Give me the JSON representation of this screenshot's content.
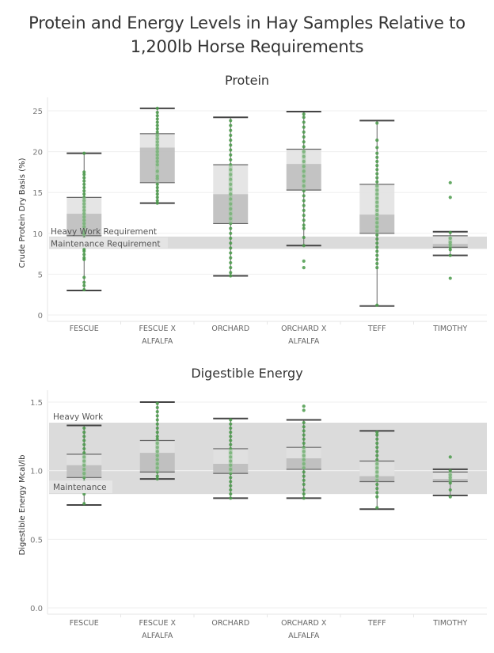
{
  "title_line1": "Protein and Energy Levels in Hay Samples Relative to",
  "title_line2": "1,200lb Horse Requirements",
  "colors": {
    "point": "#4a9a4a",
    "box_upper": "#e0e0e0",
    "box_lower": "#bdbdbd",
    "whisker": "#555555",
    "reference_band": "#d9d9d9",
    "gridline": "#efefef"
  },
  "chart_data": [
    {
      "type": "box",
      "title": "Protein",
      "ylabel": "Crude Protein Dry Basis (%)",
      "xlabel": "",
      "ylim": [
        0,
        26
      ],
      "yticks": [
        0,
        5,
        10,
        15,
        20,
        25
      ],
      "ytick_labels": [
        "0",
        "5",
        "10",
        "15",
        "20",
        "25"
      ],
      "categories": [
        "FESCUE",
        "FESCUE X\nALFALFA",
        "ORCHARD",
        "ORCHARD X\nALFALFA",
        "TEFF",
        "TIMOTHY"
      ],
      "category_lines": [
        [
          "FESCUE"
        ],
        [
          "FESCUE X",
          "ALFALFA"
        ],
        [
          "ORCHARD"
        ],
        [
          "ORCHARD X",
          "ALFALFA"
        ],
        [
          "TEFF"
        ],
        [
          "TIMOTHY"
        ]
      ],
      "reference_band": {
        "low": 8.1,
        "high": 9.6
      },
      "reference_labels": [
        {
          "text": "Heavy Work Requirement",
          "value": 9.6
        },
        {
          "text": "Maintenance Requirement",
          "value": 8.1
        }
      ],
      "boxes": [
        {
          "category": "FESCUE",
          "whisker_low": 3.0,
          "q1": 9.7,
          "median": 12.4,
          "q3": 14.4,
          "whisker_high": 19.8,
          "points": [
            3.1,
            3.6,
            4.0,
            4.6,
            6.8,
            7.0,
            7.4,
            7.8,
            8.0,
            8.3,
            8.6,
            9.0,
            9.4,
            9.9,
            10.3,
            10.8,
            11.2,
            11.6,
            12.0,
            12.4,
            12.8,
            13.2,
            13.6,
            14.0,
            14.4,
            14.8,
            15.2,
            15.6,
            16.0,
            16.4,
            16.8,
            17.2,
            17.5,
            19.8
          ]
        },
        {
          "category": "FESCUE X ALFALFA",
          "whisker_low": 13.7,
          "q1": 16.2,
          "median": 20.5,
          "q3": 22.2,
          "whisker_high": 25.3,
          "points": [
            13.7,
            14.0,
            14.4,
            14.8,
            15.2,
            15.6,
            16.0,
            16.7,
            17.0,
            17.6,
            18.4,
            18.8,
            19.2,
            19.6,
            20.0,
            20.4,
            20.8,
            21.2,
            21.6,
            22.0,
            22.4,
            22.8,
            23.2,
            23.6,
            24.0,
            24.4,
            24.8,
            25.3
          ]
        },
        {
          "category": "ORCHARD",
          "whisker_low": 4.8,
          "q1": 11.2,
          "median": 14.8,
          "q3": 18.4,
          "whisker_high": 24.2,
          "points": [
            4.8,
            5.2,
            5.8,
            6.4,
            7.0,
            7.6,
            8.2,
            8.8,
            9.4,
            10.0,
            10.6,
            11.2,
            11.8,
            12.4,
            13.0,
            13.6,
            14.2,
            14.8,
            15.4,
            16.0,
            16.6,
            17.2,
            17.8,
            18.4,
            19.0,
            19.6,
            20.2,
            20.8,
            21.4,
            22.0,
            22.6,
            23.2,
            23.8
          ]
        },
        {
          "category": "ORCHARD X ALFALFA",
          "whisker_low": 8.5,
          "q1": 15.3,
          "median": 18.5,
          "q3": 20.3,
          "whisker_high": 24.9,
          "points": [
            5.8,
            6.6,
            8.5,
            9.5,
            10.6,
            11.0,
            11.6,
            12.2,
            12.8,
            13.4,
            14.0,
            14.6,
            15.2,
            15.8,
            16.4,
            17.0,
            17.6,
            18.2,
            18.8,
            19.4,
            20.0,
            20.6,
            21.2,
            21.8,
            22.4,
            23.0,
            23.6,
            24.2,
            24.6
          ]
        },
        {
          "category": "TEFF",
          "whisker_low": 1.1,
          "q1": 10.0,
          "median": 12.3,
          "q3": 16.0,
          "whisker_high": 23.8,
          "points": [
            1.2,
            5.8,
            6.3,
            6.8,
            7.3,
            7.8,
            8.3,
            8.8,
            9.3,
            9.8,
            10.3,
            10.8,
            11.3,
            11.8,
            12.3,
            12.8,
            13.3,
            13.8,
            14.3,
            14.8,
            15.3,
            15.8,
            16.3,
            16.8,
            17.3,
            17.8,
            18.3,
            18.8,
            19.3,
            19.8,
            20.5,
            21.4,
            23.5
          ]
        },
        {
          "category": "TIMOTHY",
          "whisker_low": 7.3,
          "q1": 8.3,
          "median": 8.7,
          "q3": 9.7,
          "whisker_high": 10.2,
          "points": [
            4.5,
            7.3,
            8.0,
            8.3,
            8.6,
            8.9,
            9.4,
            10.1,
            14.4,
            16.2
          ]
        }
      ]
    },
    {
      "type": "box",
      "title": "Digestible Energy",
      "ylabel": "Digestible Energy Mcal/lb",
      "xlabel": "",
      "ylim": [
        0,
        1.55
      ],
      "yticks": [
        0.0,
        0.5,
        1.0,
        1.5
      ],
      "ytick_labels": [
        "0.0",
        "0.5",
        "1.0",
        "1.5"
      ],
      "categories": [
        "FESCUE",
        "FESCUE X\nALFALFA",
        "ORCHARD",
        "ORCHARD X\nALFALFA",
        "TEFF",
        "TIMOTHY"
      ],
      "category_lines": [
        [
          "FESCUE"
        ],
        [
          "FESCUE X",
          "ALFALFA"
        ],
        [
          "ORCHARD"
        ],
        [
          "ORCHARD X",
          "ALFALFA"
        ],
        [
          "TEFF"
        ],
        [
          "TIMOTHY"
        ]
      ],
      "reference_band": {
        "low": 0.83,
        "high": 1.35
      },
      "reference_labels": [
        {
          "text": "Heavy Work",
          "value": 1.35
        },
        {
          "text": "Maintenance",
          "value": 0.83
        }
      ],
      "boxes": [
        {
          "category": "FESCUE",
          "whisker_low": 0.75,
          "q1": 0.95,
          "median": 1.04,
          "q3": 1.12,
          "whisker_high": 1.33,
          "points": [
            0.76,
            0.83,
            0.86,
            0.89,
            0.92,
            0.95,
            0.98,
            1.01,
            1.04,
            1.07,
            1.1,
            1.13,
            1.16,
            1.19,
            1.22,
            1.25,
            1.28,
            1.31
          ]
        },
        {
          "category": "FESCUE X ALFALFA",
          "whisker_low": 0.94,
          "q1": 0.99,
          "median": 1.13,
          "q3": 1.22,
          "whisker_high": 1.5,
          "points": [
            0.94,
            0.96,
            0.99,
            1.02,
            1.05,
            1.08,
            1.11,
            1.14,
            1.17,
            1.2,
            1.23,
            1.25,
            1.28,
            1.31,
            1.34,
            1.37,
            1.4,
            1.43,
            1.46,
            1.49
          ]
        },
        {
          "category": "ORCHARD",
          "whisker_low": 0.8,
          "q1": 0.98,
          "median": 1.05,
          "q3": 1.16,
          "whisker_high": 1.38,
          "points": [
            0.8,
            0.83,
            0.86,
            0.89,
            0.92,
            0.95,
            0.98,
            1.01,
            1.04,
            1.07,
            1.1,
            1.13,
            1.16,
            1.19,
            1.22,
            1.25,
            1.28,
            1.31,
            1.34,
            1.37
          ]
        },
        {
          "category": "ORCHARD X ALFALFA",
          "whisker_low": 0.8,
          "q1": 1.01,
          "median": 1.09,
          "q3": 1.17,
          "whisker_high": 1.37,
          "points": [
            0.8,
            0.83,
            0.86,
            0.9,
            0.93,
            0.96,
            0.99,
            1.02,
            1.05,
            1.08,
            1.11,
            1.14,
            1.17,
            1.2,
            1.23,
            1.26,
            1.29,
            1.32,
            1.35,
            1.44,
            1.47
          ]
        },
        {
          "category": "TEFF",
          "whisker_low": 0.72,
          "q1": 0.92,
          "median": 0.96,
          "q3": 1.07,
          "whisker_high": 1.29,
          "points": [
            0.73,
            0.81,
            0.84,
            0.87,
            0.9,
            0.93,
            0.96,
            0.99,
            1.02,
            1.05,
            1.08,
            1.11,
            1.14,
            1.17,
            1.2,
            1.23,
            1.26,
            1.28
          ]
        },
        {
          "category": "TIMOTHY",
          "whisker_low": 0.82,
          "q1": 0.92,
          "median": 0.94,
          "q3": 0.99,
          "whisker_high": 1.01,
          "points": [
            0.81,
            0.86,
            0.91,
            0.93,
            0.95,
            0.97,
            1.0,
            1.1
          ]
        }
      ]
    }
  ]
}
